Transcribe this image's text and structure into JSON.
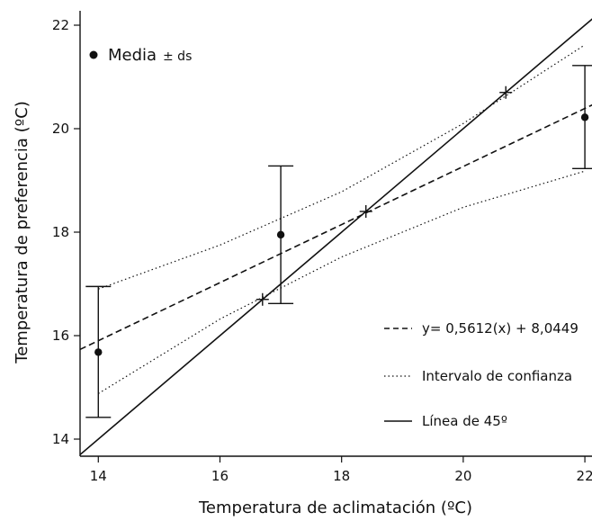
{
  "chart_data": {
    "type": "scatter",
    "xlabel": "Temperatura de aclimatación (ºC)",
    "ylabel": "Temperatura de preferencia (ºC)",
    "xlim": [
      13.7,
      22.2
    ],
    "ylim": [
      13.7,
      22.3
    ],
    "x_ticks": [
      14,
      16,
      18,
      20,
      22
    ],
    "y_ticks": [
      14,
      16,
      18,
      20,
      22
    ],
    "x_tick_labels": [
      "14",
      "16",
      "18",
      "20",
      "22"
    ],
    "y_tick_labels": [
      "14",
      "16",
      "18",
      "20",
      "22"
    ],
    "grid": false,
    "legend_position": "top-left and bottom-right",
    "series": [
      {
        "name": "Media",
        "kind": "points_with_errorbars",
        "x": [
          14,
          17,
          22
        ],
        "y": [
          15.68,
          17.95,
          20.22
        ],
        "err_low": [
          14.42,
          16.62,
          19.23
        ],
        "err_high": [
          16.95,
          19.28,
          21.22
        ]
      },
      {
        "name": "y= 0,5612(x) + 8,0449",
        "kind": "line",
        "style": "dashed",
        "slope": 0.5612,
        "intercept": 8.0449,
        "x_range": [
          13.7,
          22.2
        ]
      },
      {
        "name": "Intervalo de confianza",
        "kind": "curve_pair",
        "style": "dotted",
        "upper": {
          "x": [
            14,
            16,
            18,
            20,
            22
          ],
          "y": [
            16.9,
            17.75,
            18.78,
            20.1,
            21.62
          ]
        },
        "lower": {
          "x": [
            14,
            16,
            18,
            20,
            22
          ],
          "y": [
            14.88,
            16.32,
            17.52,
            18.48,
            19.18
          ]
        }
      },
      {
        "name": "Línea de 45º",
        "kind": "line",
        "style": "solid",
        "slope": 1,
        "intercept": 0,
        "x_range": [
          13.7,
          22.2
        ]
      }
    ],
    "markers": {
      "symbol": "+",
      "x": [
        16.7,
        18.4,
        20.7
      ],
      "y": [
        16.7,
        18.4,
        20.7
      ]
    },
    "legend": {
      "media": "Media",
      "media_suffix": "± ds",
      "entries": [
        {
          "label": "y= 0,5612(x) + 8,0449",
          "style": "dashed"
        },
        {
          "label": "Intervalo de confianza",
          "style": "dotted"
        },
        {
          "label": "Línea de 45º",
          "style": "solid"
        }
      ]
    },
    "colors": {
      "ink": "#111111",
      "background": "#ffffff"
    }
  }
}
